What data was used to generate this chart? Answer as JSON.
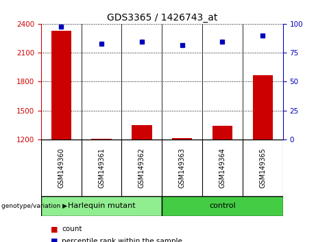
{
  "title": "GDS3365 / 1426743_at",
  "samples": [
    "GSM149360",
    "GSM149361",
    "GSM149362",
    "GSM149363",
    "GSM149364",
    "GSM149365"
  ],
  "counts": [
    2330,
    1205,
    1350,
    1210,
    1340,
    1870
  ],
  "percentiles": [
    98,
    83,
    85,
    82,
    85,
    90
  ],
  "ylim_left": [
    1200,
    2400
  ],
  "ylim_right": [
    0,
    100
  ],
  "yticks_left": [
    1200,
    1500,
    1800,
    2100,
    2400
  ],
  "yticks_right": [
    0,
    25,
    50,
    75,
    100
  ],
  "groups": [
    {
      "label": "Harlequin mutant",
      "samples": [
        0,
        1,
        2
      ],
      "color": "#90EE90"
    },
    {
      "label": "control",
      "samples": [
        3,
        4,
        5
      ],
      "color": "#44CC44"
    }
  ],
  "bar_color": "#CC0000",
  "dot_color": "#0000BB",
  "left_axis_color": "#CC0000",
  "right_axis_color": "#0000BB",
  "bg_color": "#FFFFFF",
  "plot_bg_color": "#FFFFFF",
  "gray_bg": "#CCCCCC",
  "genotype_label": "genotype/variation",
  "legend_count": "count",
  "legend_percentile": "percentile rank within the sample",
  "bar_width": 0.5
}
